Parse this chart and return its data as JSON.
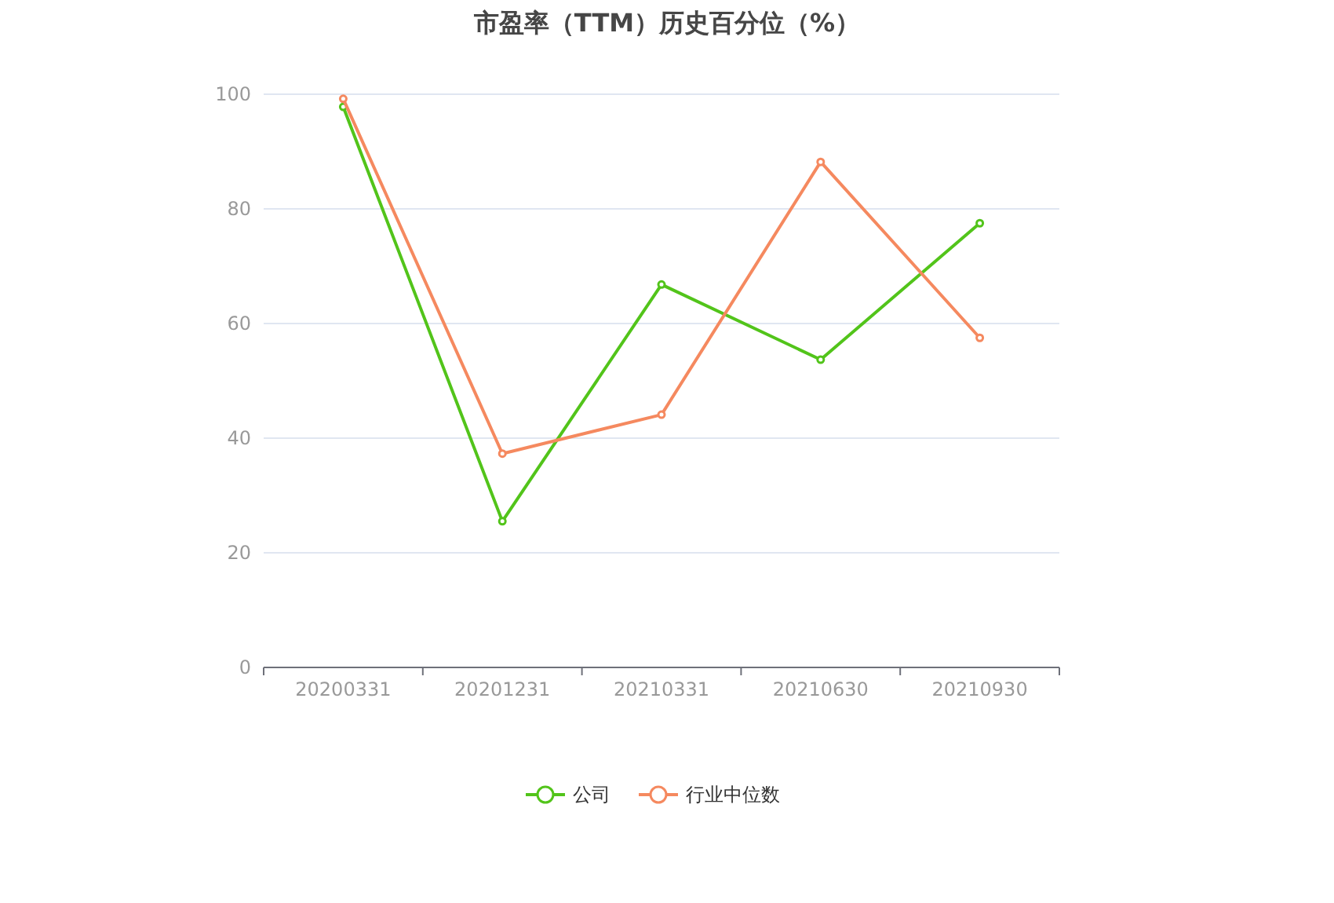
{
  "chart_data": {
    "type": "line",
    "title": "市盈率（TTM）历史百分位（%）",
    "categories": [
      "20200331",
      "20201231",
      "20210331",
      "20210630",
      "20210930"
    ],
    "series": [
      {
        "name": "公司",
        "color": "#52c41a",
        "values": [
          97.8,
          25.5,
          66.8,
          53.7,
          77.5
        ]
      },
      {
        "name": "行业中位数",
        "color": "#f5895f",
        "values": [
          99.2,
          37.3,
          44.1,
          88.2,
          57.5
        ]
      }
    ],
    "ylim": [
      0,
      100
    ],
    "yticks": [
      0,
      20,
      40,
      60,
      80,
      100
    ],
    "grid": "y",
    "legend": "bottom",
    "marker": "circle"
  }
}
